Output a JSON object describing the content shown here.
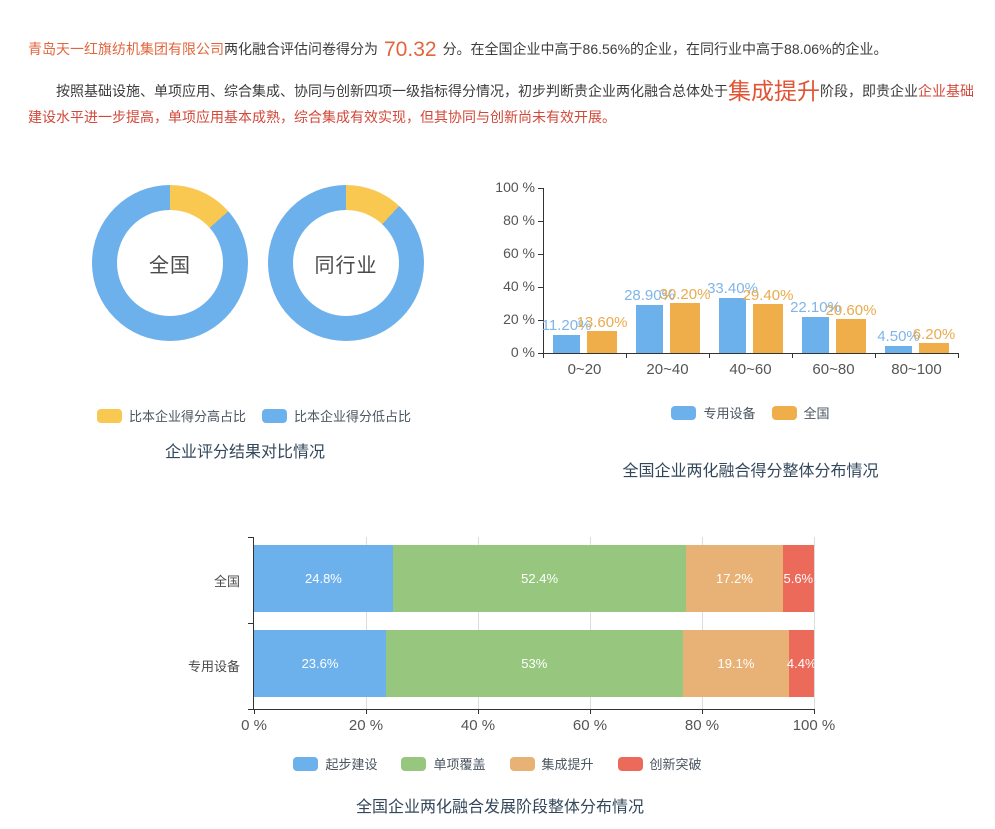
{
  "colors": {
    "body_text": "#3b3b3b",
    "accent_orange": "#e2663d",
    "stage_red": "#e25335",
    "desc_red": "#d2483a",
    "title": "#33475b",
    "axis_line": "#333333",
    "axis_text": "#555555",
    "grid_line": "#dddddd",
    "blue": "#6cb1ec",
    "yellow": "#f8c851",
    "bar_orange": "#f0ae4b",
    "blue_label": "#7fb5ea",
    "orange_label": "#e9ab4d",
    "green": "#97c77e",
    "stack_orange": "#e8b175",
    "stack_red": "#ec6a5a"
  },
  "intro": {
    "company": "青岛天一红旗纺机集团有限公司",
    "after_company": "两化融合评估问卷得分为",
    "score": "70.32",
    "after_score": "分。在全国企业中高于86.56%的企业，在同行业中高于88.06%的企业。",
    "assess_lead": "按照基础设施、单项应用、综合集成、协同与创新四项一级指标得分情况，初步判断贵企业两化融合总体处于",
    "stage": "集成提升",
    "after_stage": "阶段，即贵企业",
    "stage_desc": "企业基础建设水平进一步提高，单项应用基本成熟，综合集成有效实现，但其协同与创新尚未有效开展。"
  },
  "chart_data": [
    {
      "type": "pie",
      "subtype": "donut-pair",
      "title": "企业评分结果对比情况",
      "legend": [
        {
          "label": "比本企业得分高占比",
          "color": "#f8c851"
        },
        {
          "label": "比本企业得分低占比",
          "color": "#6cb1ec"
        }
      ],
      "donuts": [
        {
          "center_label": "全国",
          "slices": [
            {
              "name": "比本企业得分高占比",
              "value": 13.44,
              "color": "#f8c851"
            },
            {
              "name": "比本企业得分低占比",
              "value": 86.56,
              "color": "#6cb1ec"
            }
          ]
        },
        {
          "center_label": "同行业",
          "slices": [
            {
              "name": "比本企业得分高占比",
              "value": 11.94,
              "color": "#f8c851"
            },
            {
              "name": "比本企业得分低占比",
              "value": 88.06,
              "color": "#6cb1ec"
            }
          ]
        }
      ]
    },
    {
      "type": "bar",
      "title": "全国企业两化融合得分整体分布情况",
      "categories": [
        "0~20",
        "20~40",
        "40~60",
        "60~80",
        "80~100"
      ],
      "series": [
        {
          "name": "专用设备",
          "color": "#6cb1ec",
          "label_color": "#7fb5ea",
          "values": [
            11.2,
            28.9,
            33.4,
            22.1,
            4.5
          ],
          "labels": [
            "11.20%",
            "28.90%",
            "33.40%",
            "22.10%",
            "4.50%"
          ]
        },
        {
          "name": "全国",
          "color": "#f0ae4b",
          "label_color": "#e9ab4d",
          "values": [
            13.6,
            30.2,
            29.4,
            20.6,
            6.2
          ],
          "labels": [
            "13.60%",
            "30.20%",
            "29.40%",
            "20.60%",
            "6.20%"
          ]
        }
      ],
      "ylim": [
        0,
        100
      ],
      "yticks": [
        "0 %",
        "20 %",
        "40 %",
        "60 %",
        "80 %",
        "100 %"
      ],
      "grid": false,
      "legend_position": "bottom"
    },
    {
      "type": "bar",
      "subtype": "stacked-horizontal",
      "title": "全国企业两化融合发展阶段整体分布情况",
      "categories": [
        "全国",
        "专用设备"
      ],
      "stages": [
        {
          "name": "起步建设",
          "color": "#6cb1ec"
        },
        {
          "name": "单项覆盖",
          "color": "#97c77e"
        },
        {
          "name": "集成提升",
          "color": "#e8b175"
        },
        {
          "name": "创新突破",
          "color": "#ec6a5a"
        }
      ],
      "rows": [
        {
          "category": "全国",
          "values": [
            24.8,
            52.4,
            17.2,
            5.6
          ],
          "labels": [
            "24.8%",
            "52.4%",
            "17.2%",
            "5.6%"
          ]
        },
        {
          "category": "专用设备",
          "values": [
            23.6,
            53,
            19.1,
            4.4
          ],
          "labels": [
            "23.6%",
            "53%",
            "19.1%",
            "4.4%"
          ]
        }
      ],
      "xlim": [
        0,
        100
      ],
      "xticks": [
        "0 %",
        "20 %",
        "40 %",
        "60 %",
        "80 %",
        "100 %"
      ],
      "grid": true,
      "legend_position": "bottom"
    }
  ]
}
